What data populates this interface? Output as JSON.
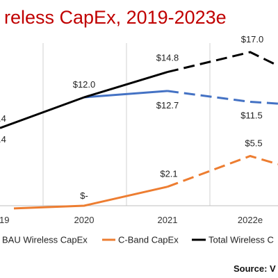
{
  "chart_data": {
    "type": "line",
    "title": "reless CapEx, 2019-2023e",
    "categories": [
      "19",
      "2020",
      "2021",
      "2022e"
    ],
    "xlabel": "",
    "ylabel": "",
    "ylim": [
      0,
      18
    ],
    "grid": "vertical",
    "legend_position": "bottom",
    "series": [
      {
        "name": "BAU Wireless CapEx",
        "color": "#4472C4",
        "values": [
          null,
          12.0,
          12.7,
          11.5
        ],
        "labels": [
          null,
          "$12.0",
          "$12.7",
          "$11.5"
        ]
      },
      {
        "name": "C-Band CapEx",
        "color": "#ED7D31",
        "values": [
          null,
          0,
          2.1,
          5.5
        ],
        "labels": [
          null,
          "$-",
          "$2.1",
          "$5.5"
        ]
      },
      {
        "name": "Total Wireless C",
        "color": "#000000",
        "values": [
          null,
          12.0,
          14.8,
          17.0
        ],
        "labels": [
          null,
          "$12.0",
          "$14.8",
          "$17.0"
        ]
      }
    ],
    "edge_labels": [
      ".4",
      ".4"
    ],
    "source": "Source: V"
  },
  "colors": {
    "title": "#C00000",
    "grid": "#d0d0d0",
    "axis": "#bfbfbf"
  }
}
